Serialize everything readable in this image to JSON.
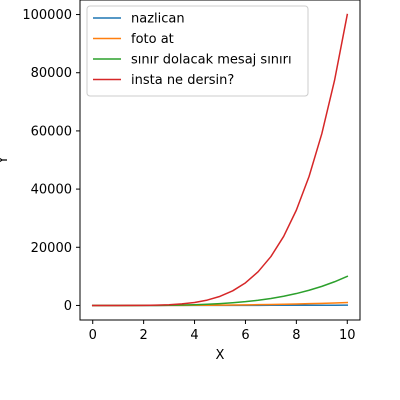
{
  "chart_data": {
    "type": "line",
    "title": "",
    "xlabel": "X",
    "ylabel": "Y",
    "xlim": [
      -0.5,
      10.5
    ],
    "ylim": [
      -5000,
      105000
    ],
    "xticks": [
      0,
      2,
      4,
      6,
      8,
      10
    ],
    "xtick_labels": [
      "0",
      "2",
      "4",
      "6",
      "8",
      "10"
    ],
    "yticks": [
      0,
      20000,
      40000,
      60000,
      80000,
      100000
    ],
    "ytick_labels": [
      "0",
      "20000",
      "40000",
      "60000",
      "80000",
      "100000"
    ],
    "grid": false,
    "legend_position": "top-left",
    "x": [
      0,
      0.5,
      1,
      1.5,
      2,
      2.5,
      3,
      3.5,
      4,
      4.5,
      5,
      5.5,
      6,
      6.5,
      7,
      7.5,
      8,
      8.5,
      9,
      9.5,
      10
    ],
    "series": [
      {
        "name": "nazlican",
        "color": "#1f77b4",
        "values": [
          0,
          0.25,
          1,
          2.25,
          4,
          6.25,
          9,
          12.25,
          16,
          20.25,
          25,
          30.25,
          36,
          42.25,
          49,
          56.25,
          64,
          72.25,
          81,
          90.25,
          100
        ]
      },
      {
        "name": "foto at",
        "color": "#ff7f0e",
        "values": [
          0,
          0.1,
          1,
          3.4,
          8,
          15.6,
          27,
          42.9,
          64,
          91.1,
          125,
          166.4,
          216,
          274.6,
          343,
          421.9,
          512,
          614.1,
          729,
          857.4,
          1000
        ]
      },
      {
        "name": "sınır dolacak mesaj sınırı",
        "color": "#2ca02c",
        "values": [
          0,
          0.1,
          1,
          5.1,
          16,
          39.1,
          81,
          150.1,
          256,
          410.1,
          625,
          915.1,
          1296,
          1785.1,
          2401,
          3164.1,
          4096,
          5220.1,
          6561,
          8145.1,
          10000
        ]
      },
      {
        "name": "insta ne dersin?",
        "color": "#d62728",
        "values": [
          0,
          0,
          1,
          7.6,
          32,
          97.7,
          243,
          525.2,
          1024,
          1845.3,
          3125,
          5032.8,
          7776,
          11602.9,
          16807,
          23730.5,
          32768,
          44370.5,
          59049,
          77378.1,
          100000
        ]
      }
    ]
  }
}
